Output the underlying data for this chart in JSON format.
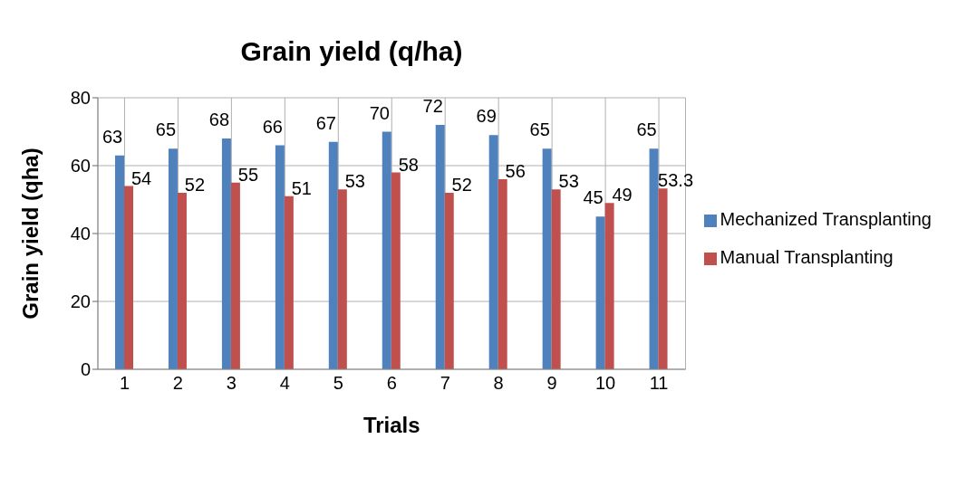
{
  "chart_data": {
    "type": "bar",
    "title": "Grain yield (q/ha)",
    "xlabel": "Trials",
    "ylabel": "Grain yield (qha)",
    "categories": [
      "1",
      "2",
      "3",
      "4",
      "5",
      "6",
      "7",
      "8",
      "9",
      "10",
      "11"
    ],
    "series": [
      {
        "name": "Mechanized Transplanting",
        "color": "#4f81bd",
        "values": [
          63,
          65,
          68,
          66,
          67,
          70,
          72,
          69,
          65,
          45,
          65
        ]
      },
      {
        "name": "Manual Transplanting",
        "color": "#c0504d",
        "values": [
          54,
          52,
          55,
          51,
          53,
          58,
          52,
          56,
          53,
          49,
          53.3
        ]
      }
    ],
    "ylim": [
      0,
      80
    ],
    "yticks": [
      0,
      20,
      40,
      60,
      80
    ],
    "grid": true,
    "legend": "right",
    "data_labels": true
  }
}
